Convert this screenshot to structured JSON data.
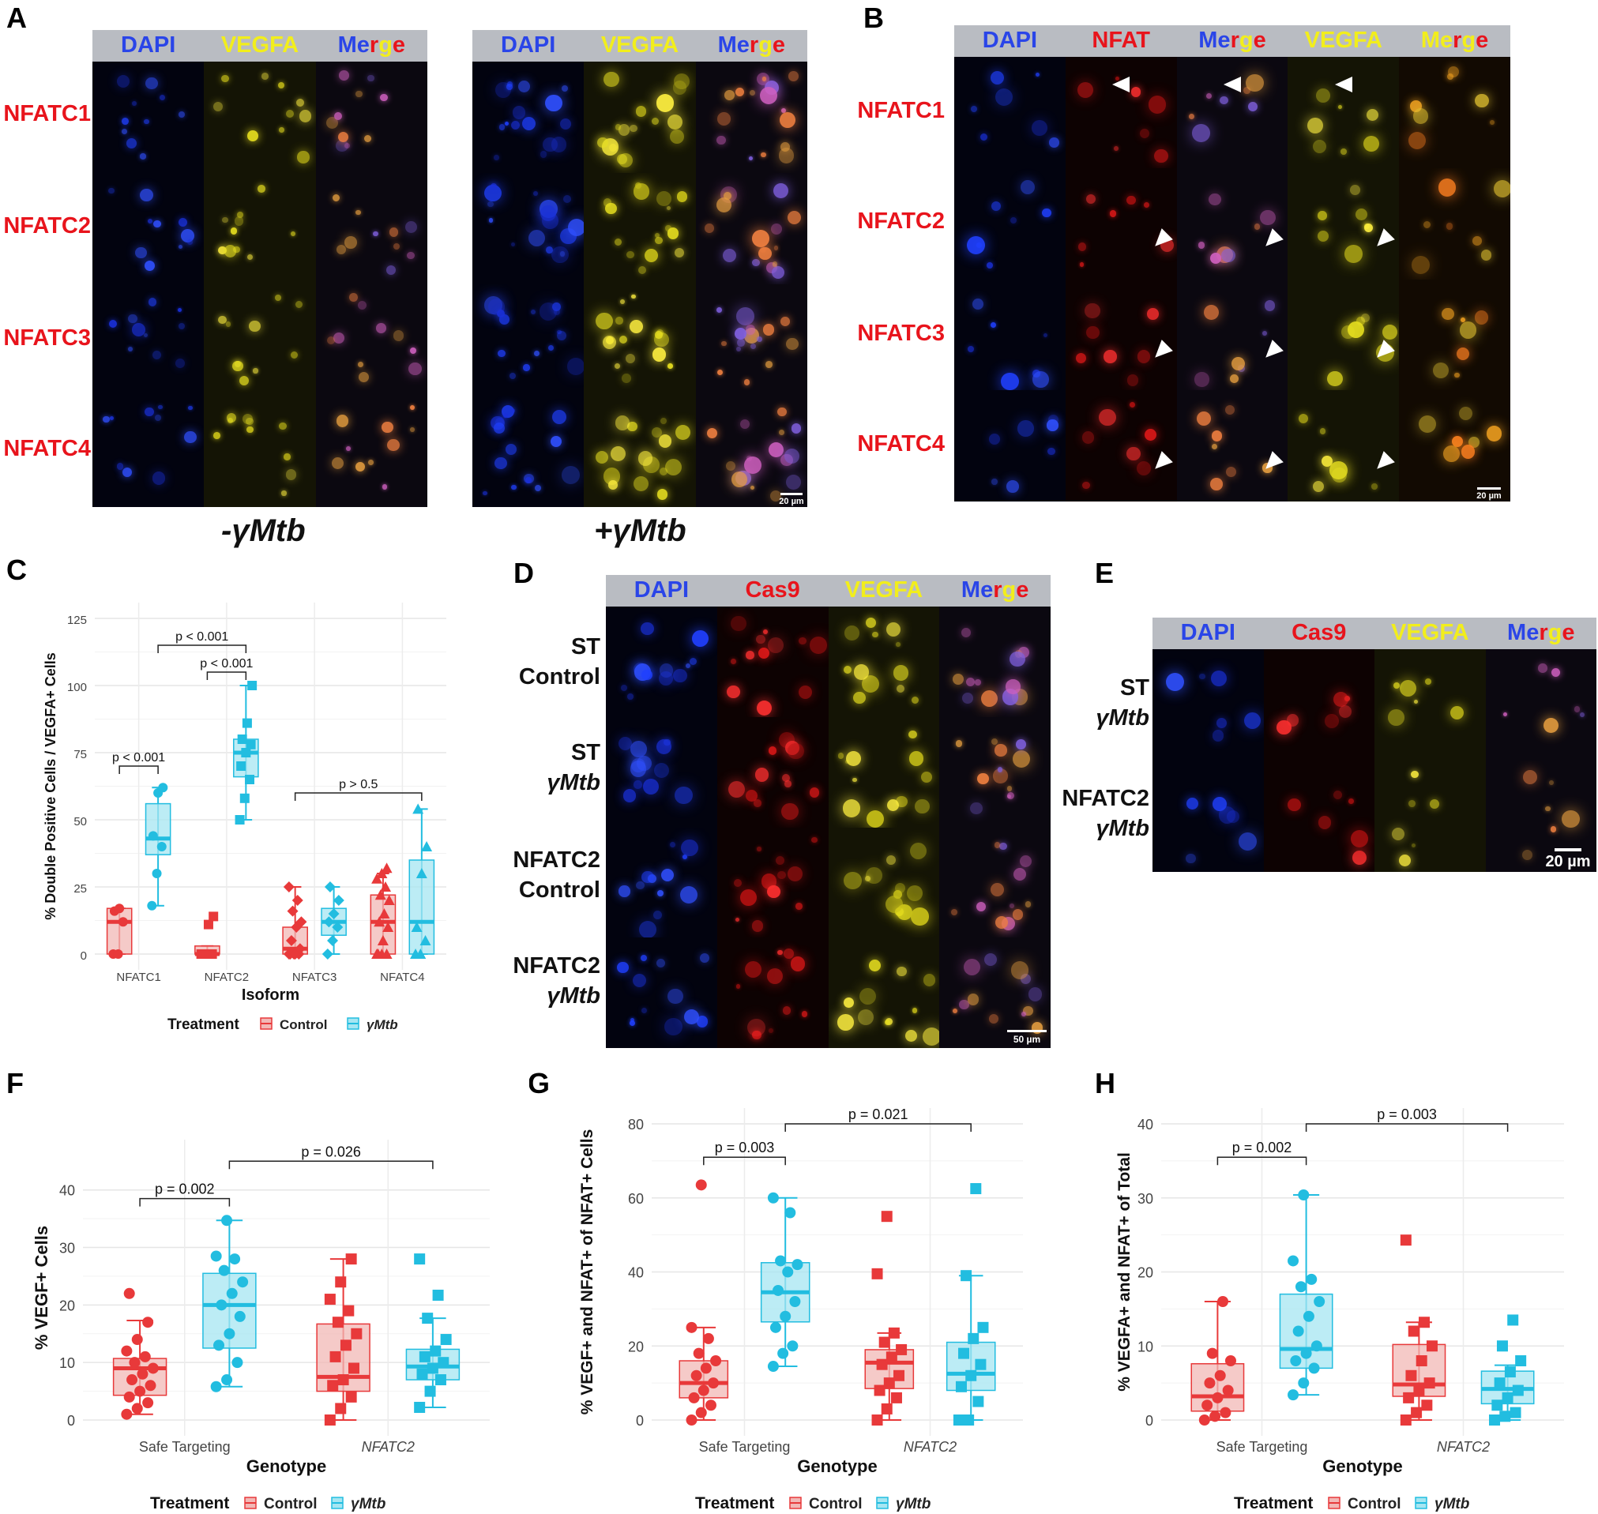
{
  "colors": {
    "blue": "#2a45e8",
    "red": "#e8141c",
    "yellow": "#f2ee1c",
    "control": "#e8393a",
    "ymtb": "#22bde0",
    "control_fill": "#f2b8b6",
    "ymtb_fill": "#a6e6f2",
    "header_bg": "#b9bcc2"
  },
  "panelA": {
    "letter": "A",
    "headers": [
      "DAPI",
      "VEGFA",
      "Merge"
    ],
    "rows": [
      "NFATC1",
      "NFATC2",
      "NFATC3",
      "NFATC4"
    ],
    "cond_minus": "-γMtb",
    "cond_plus": "+γMtb",
    "scale": "20 µm"
  },
  "panelB": {
    "letter": "B",
    "headers": [
      "DAPI",
      "NFAT",
      "Merge",
      "VEGFA",
      "Merge"
    ],
    "rows": [
      "NFATC1",
      "NFATC2",
      "NFATC3",
      "NFATC4"
    ],
    "scale": "20 µm"
  },
  "panelD": {
    "letter": "D",
    "headers": [
      "DAPI",
      "Cas9",
      "VEGFA",
      "Merge"
    ],
    "rows": [
      [
        "ST",
        "Control"
      ],
      [
        "ST",
        "γMtb"
      ],
      [
        "NFATC2",
        "Control"
      ],
      [
        "NFATC2",
        "γMtb"
      ]
    ],
    "scale": "50 µm"
  },
  "panelE": {
    "letter": "E",
    "headers": [
      "DAPI",
      "Cas9",
      "VEGFA",
      "Merge"
    ],
    "rows": [
      [
        "ST",
        "γMtb"
      ],
      [
        "NFATC2",
        "γMtb"
      ]
    ],
    "scale": "20 µm"
  },
  "legend": {
    "title": "Treatment",
    "control": "Control",
    "ymtb": "γMtb"
  },
  "chart_data": [
    {
      "panel": "C",
      "type": "box",
      "ylabel": "% Double Positive Cells / VEGFA+ Cells",
      "xlabel": "Isoform",
      "categories": [
        "NFATC1",
        "NFATC2",
        "NFATC3",
        "NFATC4"
      ],
      "yticks": [
        0,
        25,
        50,
        75,
        100,
        125
      ],
      "ylim": [
        0,
        125
      ],
      "series": [
        {
          "name": "Control",
          "boxes": [
            {
              "min": 0,
              "q1": 0,
              "median": 12,
              "q3": 17,
              "max": 17,
              "points": [
                0,
                0,
                12,
                16,
                17
              ],
              "shape": "circle"
            },
            {
              "min": 0,
              "q1": 0,
              "median": 0,
              "q3": 3,
              "max": 3,
              "points": [
                0,
                0,
                0,
                0,
                0,
                0,
                0,
                11,
                14
              ],
              "shape": "square"
            },
            {
              "min": 0,
              "q1": 0,
              "median": 2,
              "q3": 10,
              "max": 25,
              "points": [
                0,
                0,
                0,
                0,
                0,
                2,
                5,
                10,
                12,
                16,
                20,
                25
              ],
              "shape": "diamond"
            },
            {
              "min": 0,
              "q1": 0,
              "median": 12,
              "q3": 22,
              "max": 30,
              "points": [
                0,
                0,
                0,
                0,
                5,
                10,
                12,
                15,
                20,
                22,
                25,
                28,
                30,
                32
              ],
              "shape": "triangle"
            }
          ]
        },
        {
          "name": "γMtb",
          "boxes": [
            {
              "min": 18,
              "q1": 37,
              "median": 43,
              "q3": 56,
              "max": 62,
              "points": [
                18,
                30,
                40,
                44,
                60,
                62
              ],
              "shape": "circle"
            },
            {
              "min": 50,
              "q1": 66,
              "median": 75,
              "q3": 80,
              "max": 100,
              "points": [
                50,
                58,
                65,
                70,
                75,
                78,
                80,
                86,
                100
              ],
              "shape": "square"
            },
            {
              "min": 0,
              "q1": 7,
              "median": 12,
              "q3": 17,
              "max": 25,
              "points": [
                0,
                5,
                10,
                12,
                15,
                20,
                25
              ],
              "shape": "diamond"
            },
            {
              "min": 0,
              "q1": 0,
              "median": 12,
              "q3": 35,
              "max": 54,
              "points": [
                0,
                0,
                5,
                10,
                30,
                40,
                54
              ],
              "shape": "triangle"
            }
          ]
        }
      ],
      "annotations": [
        {
          "text": "p < 0.001",
          "from": [
            0,
            0
          ],
          "to": [
            0,
            1
          ],
          "y": 70
        },
        {
          "text": "p < 0.001",
          "from": [
            0,
            1
          ],
          "to": [
            1,
            1
          ],
          "y": 115
        },
        {
          "text": "p < 0.001",
          "from": [
            1,
            0
          ],
          "to": [
            1,
            1
          ],
          "y": 105
        },
        {
          "text": "p > 0.5",
          "from": [
            2,
            0
          ],
          "to": [
            3,
            1
          ],
          "y": 60
        }
      ]
    },
    {
      "panel": "F",
      "type": "box",
      "ylabel": "% VEGF+ Cells",
      "xlabel": "Genotype",
      "categories": [
        "Safe Targeting",
        "NFATC2"
      ],
      "yticks": [
        0,
        10,
        20,
        30,
        40
      ],
      "ylim": [
        0,
        46
      ],
      "series": [
        {
          "name": "Control",
          "boxes": [
            {
              "min": 1,
              "q1": 4.3,
              "median": 9,
              "q3": 10.7,
              "max": 17.3,
              "points": [
                1,
                2,
                3,
                4,
                5,
                6,
                7,
                8,
                9,
                10,
                11,
                12,
                14,
                17,
                22
              ],
              "shape": "circle"
            },
            {
              "min": 0,
              "q1": 5,
              "median": 7.5,
              "q3": 16.7,
              "max": 28,
              "points": [
                0,
                2,
                4,
                6,
                7,
                9,
                11,
                13,
                15,
                17,
                19,
                21,
                24,
                28
              ],
              "shape": "square"
            }
          ]
        },
        {
          "name": "γMtb",
          "boxes": [
            {
              "min": 5.8,
              "q1": 12.5,
              "median": 20,
              "q3": 25.5,
              "max": 34.7,
              "points": [
                5.8,
                7,
                10,
                13,
                15,
                18,
                20,
                22,
                24,
                26,
                28,
                28.5,
                34.7
              ],
              "shape": "circle"
            },
            {
              "min": 2.2,
              "q1": 7,
              "median": 9.3,
              "q3": 12.3,
              "max": 17.7,
              "points": [
                2.2,
                5,
                7,
                8,
                9,
                10,
                11,
                12,
                14,
                17.7,
                21.7,
                28
              ],
              "shape": "square"
            }
          ]
        }
      ],
      "annotations": [
        {
          "text": "p = 0.002",
          "from": [
            0,
            0
          ],
          "to": [
            0,
            1
          ],
          "y": 38.5
        },
        {
          "text": "p = 0.026",
          "from": [
            0,
            1
          ],
          "to": [
            1,
            1
          ],
          "y": 45
        }
      ]
    },
    {
      "panel": "G",
      "type": "box",
      "ylabel": "% VEGF+ and NFAT+ of NFAT+ Cells",
      "xlabel": "Genotype",
      "categories": [
        "Safe Targeting",
        "NFATC2"
      ],
      "yticks": [
        0,
        20,
        40,
        60,
        80
      ],
      "ylim": [
        0,
        80
      ],
      "series": [
        {
          "name": "Control",
          "boxes": [
            {
              "min": 0,
              "q1": 6,
              "median": 10,
              "q3": 16,
              "max": 25,
              "points": [
                0,
                2,
                4,
                6,
                8,
                10,
                12,
                14,
                16,
                18,
                22,
                25,
                63.5
              ],
              "shape": "circle"
            },
            {
              "min": 0,
              "q1": 8.5,
              "median": 15.5,
              "q3": 19,
              "max": 23.5,
              "points": [
                0,
                3,
                6,
                8,
                10,
                12,
                15,
                17,
                19,
                21,
                23.5,
                39.5,
                55
              ],
              "shape": "square"
            }
          ]
        },
        {
          "name": "γMtb",
          "boxes": [
            {
              "min": 14.5,
              "q1": 26.5,
              "median": 34.5,
              "q3": 42.5,
              "max": 60,
              "points": [
                14.5,
                18,
                20,
                25,
                28,
                32,
                35,
                40,
                42,
                43,
                56,
                60
              ],
              "shape": "circle"
            },
            {
              "min": 0,
              "q1": 8,
              "median": 12.5,
              "q3": 21,
              "max": 39,
              "points": [
                0,
                0,
                5,
                9,
                12,
                15,
                18,
                22,
                25,
                39,
                62.5
              ],
              "shape": "square"
            }
          ]
        }
      ],
      "annotations": [
        {
          "text": "p = 0.003",
          "from": [
            0,
            0
          ],
          "to": [
            0,
            1
          ],
          "y": 71
        },
        {
          "text": "p = 0.021",
          "from": [
            0,
            1
          ],
          "to": [
            1,
            1
          ],
          "y": 80
        }
      ]
    },
    {
      "panel": "H",
      "type": "box",
      "ylabel": "% VEGFA+ and NFAT+ of Total",
      "xlabel": "Genotype",
      "categories": [
        "Safe Targeting",
        "NFATC2"
      ],
      "yticks": [
        0,
        10,
        20,
        30,
        40
      ],
      "ylim": [
        0,
        40
      ],
      "series": [
        {
          "name": "Control",
          "boxes": [
            {
              "min": 0,
              "q1": 1.2,
              "median": 3.2,
              "q3": 7.6,
              "max": 16,
              "points": [
                0,
                0.5,
                1,
                2,
                3,
                4,
                5,
                6,
                8,
                9,
                16
              ],
              "shape": "circle"
            },
            {
              "min": 0,
              "q1": 3.2,
              "median": 4.8,
              "q3": 10.2,
              "max": 13.2,
              "points": [
                0,
                1,
                2,
                3,
                4,
                5,
                6,
                8,
                10,
                12,
                13.2,
                24.3
              ],
              "shape": "square"
            }
          ]
        },
        {
          "name": "γMtb",
          "boxes": [
            {
              "min": 3.4,
              "q1": 7,
              "median": 9.6,
              "q3": 17,
              "max": 30.4,
              "points": [
                3.4,
                5,
                7,
                8,
                9,
                10,
                12,
                14,
                16,
                18,
                19,
                21.5,
                30.4
              ],
              "shape": "circle"
            },
            {
              "min": 0,
              "q1": 2.2,
              "median": 4.2,
              "q3": 6.6,
              "max": 7.4,
              "points": [
                0,
                0.5,
                1,
                2,
                3,
                4,
                5,
                6.5,
                8,
                10,
                13.5
              ],
              "shape": "square"
            }
          ]
        }
      ],
      "annotations": [
        {
          "text": "p = 0.002",
          "from": [
            0,
            0
          ],
          "to": [
            0,
            1
          ],
          "y": 35.5
        },
        {
          "text": "p = 0.003",
          "from": [
            0,
            1
          ],
          "to": [
            1,
            1
          ],
          "y": 40
        }
      ]
    }
  ]
}
